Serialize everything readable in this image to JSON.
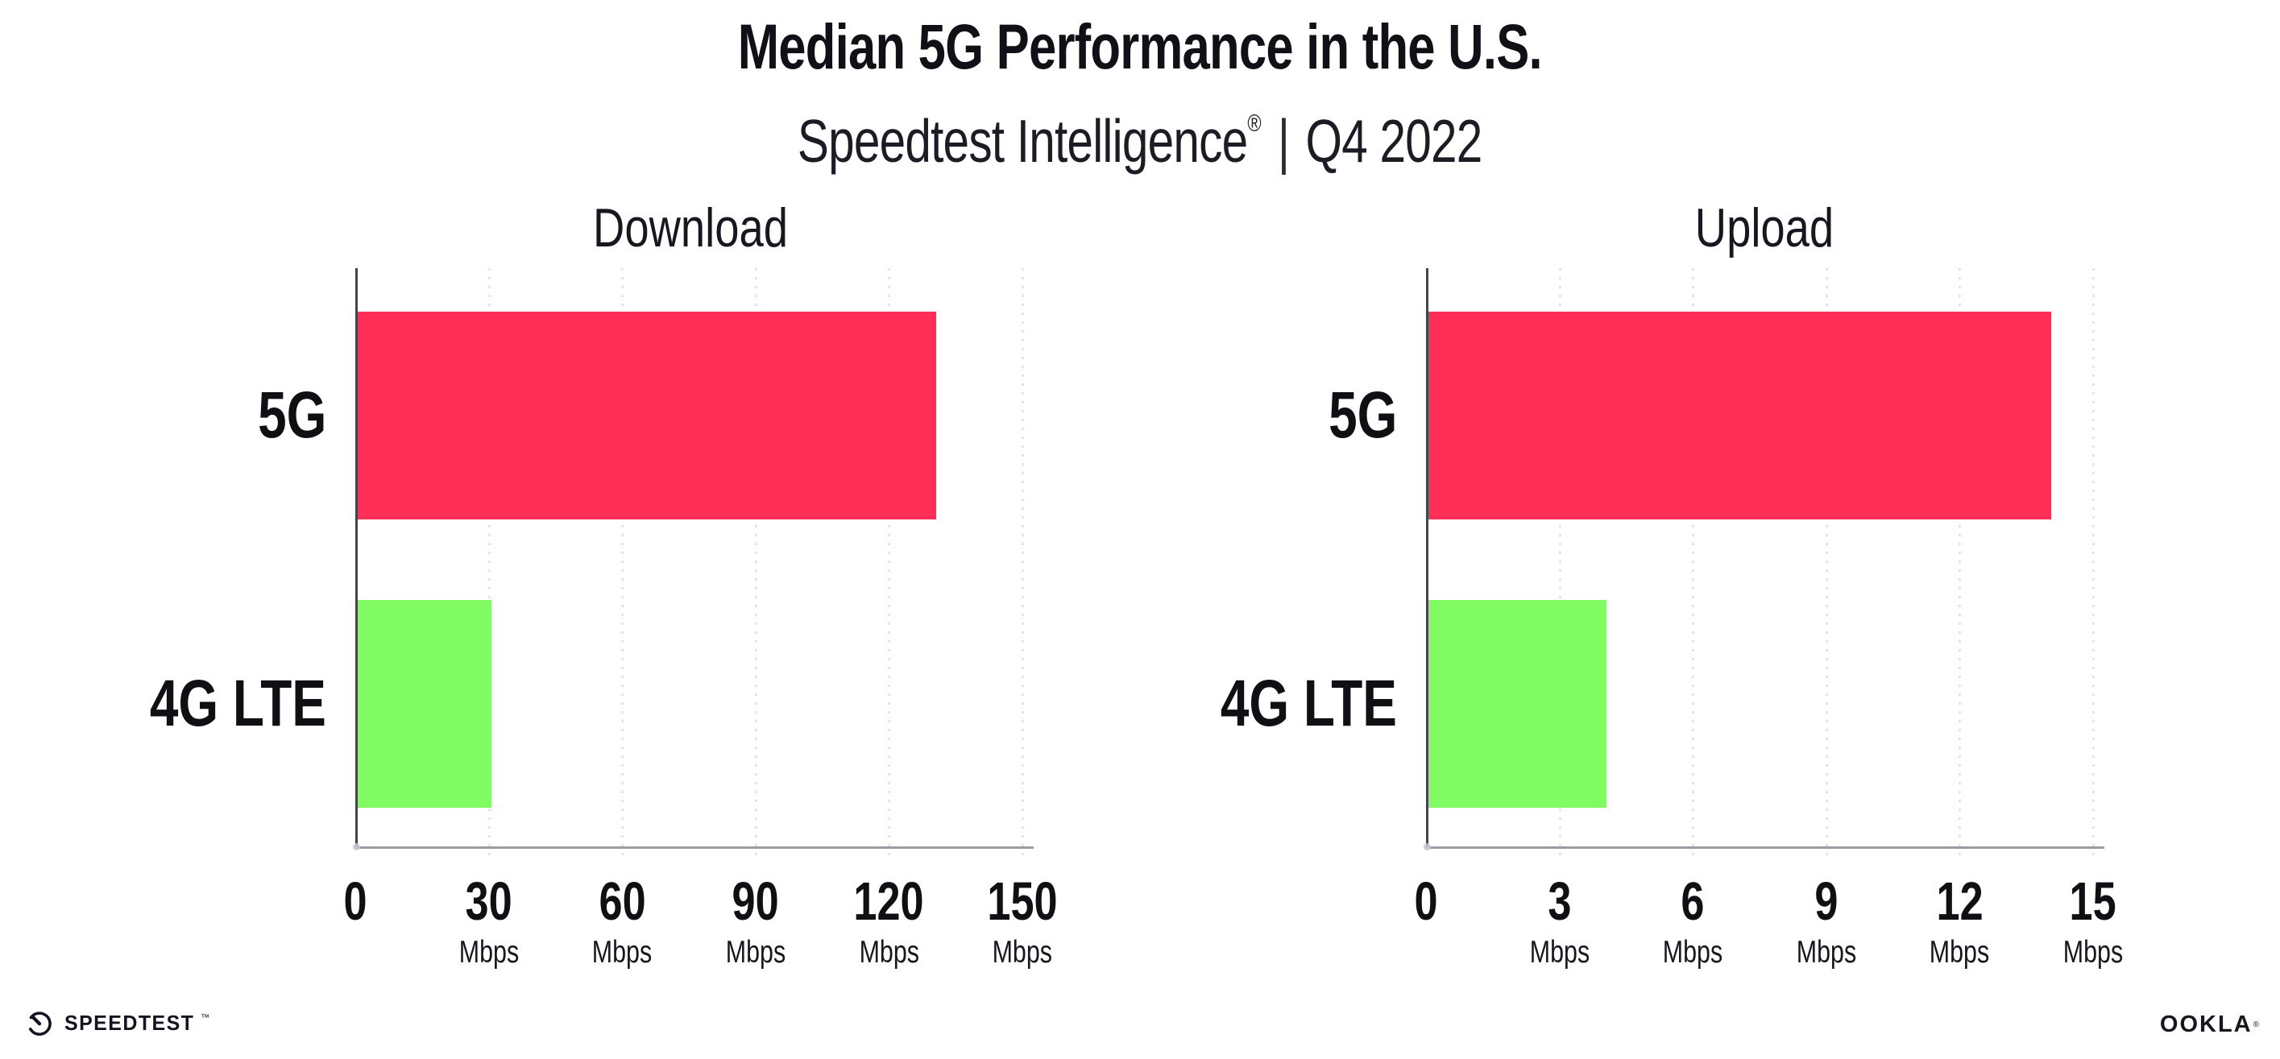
{
  "header": {
    "title": "Median 5G Performance in the U.S.",
    "subtitle_brand": "Speedtest Intelligence",
    "subtitle_reg": "®",
    "subtitle_sep": "|",
    "subtitle_period": "Q4 2022"
  },
  "chart_data": [
    {
      "type": "bar",
      "orientation": "horizontal",
      "title": "Download",
      "categories": [
        "5G",
        "4G LTE"
      ],
      "values": [
        130,
        30
      ],
      "unit": "Mbps",
      "xlim": [
        0,
        150
      ],
      "xticks": [
        0,
        30,
        60,
        90,
        120,
        150
      ],
      "grid": "vertical-dotted",
      "legend": "none",
      "bar_colors": [
        "#ff2e56",
        "#80fb62"
      ]
    },
    {
      "type": "bar",
      "orientation": "horizontal",
      "title": "Upload",
      "categories": [
        "5G",
        "4G LTE"
      ],
      "values": [
        14,
        4
      ],
      "unit": "Mbps",
      "xlim": [
        0,
        15
      ],
      "xticks": [
        0,
        3,
        6,
        9,
        12,
        15
      ],
      "grid": "vertical-dotted",
      "legend": "none",
      "bar_colors": [
        "#ff2e56",
        "#80fb62"
      ]
    }
  ],
  "footer": {
    "speedtest_logo_text": "SPEEDTEST",
    "speedtest_mark": "™",
    "speedtest_icon": "gauge-icon",
    "ookla_logo_text": "OOKLA",
    "ookla_mark": "®"
  },
  "colors": {
    "bar_5g": "#ff2e56",
    "bar_4g_lte": "#80fb62",
    "gridline": "#e3e3ee",
    "y_axis": "#45454d",
    "x_axis": "#9b9ba3",
    "text": "#15151b",
    "background": "#ffffff"
  }
}
